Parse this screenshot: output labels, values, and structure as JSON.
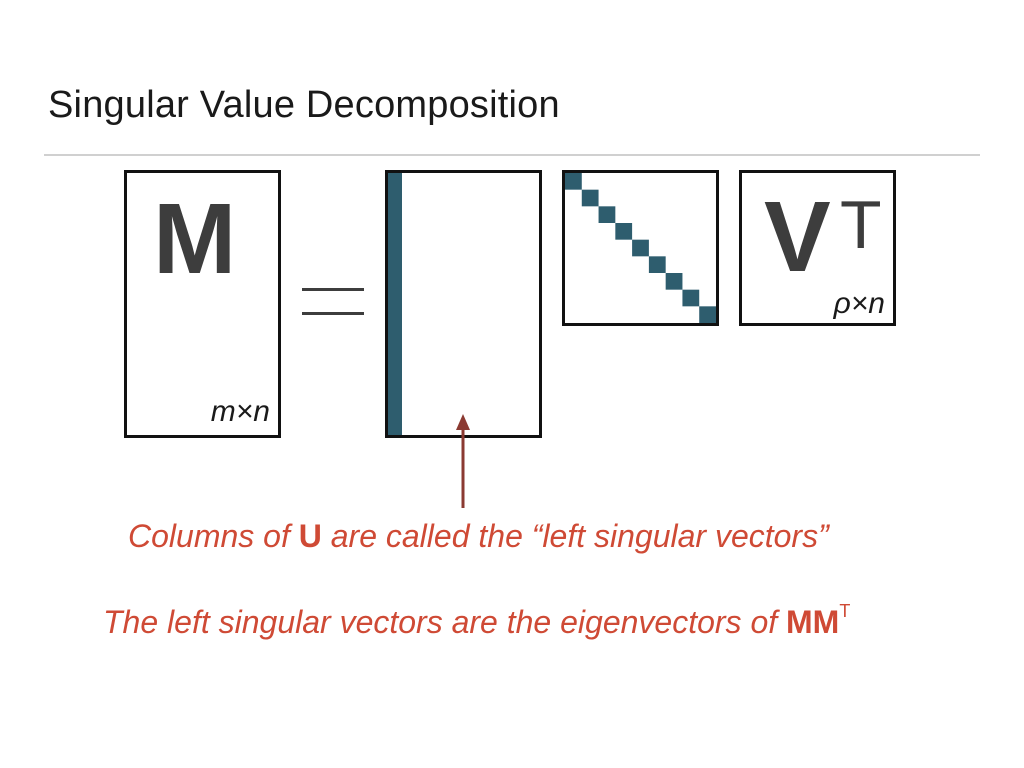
{
  "slide": {
    "title": "Singular Value Decomposition"
  },
  "matrices": {
    "m": {
      "letter": "M",
      "dims": "m×n"
    },
    "equals": "=",
    "u": {
      "highlighted_column": 1
    },
    "sigma": {
      "diagonal_entries": 9
    },
    "vt": {
      "letter": "V",
      "superscript": "T",
      "dims": "ρ×n"
    }
  },
  "captions": {
    "line1": {
      "prefix": "Columns of ",
      "bold": "U",
      "suffix": " are called the “left singular vectors”"
    },
    "line2": {
      "prefix": "The left singular vectors are the eigenvectors of ",
      "bold": "MM",
      "superscript": "T"
    }
  },
  "colors": {
    "accent_fill": "#2e5d6e",
    "caption": "#cf4a35",
    "arrow": "#8b3a32",
    "letters": "#3d3d3d"
  }
}
